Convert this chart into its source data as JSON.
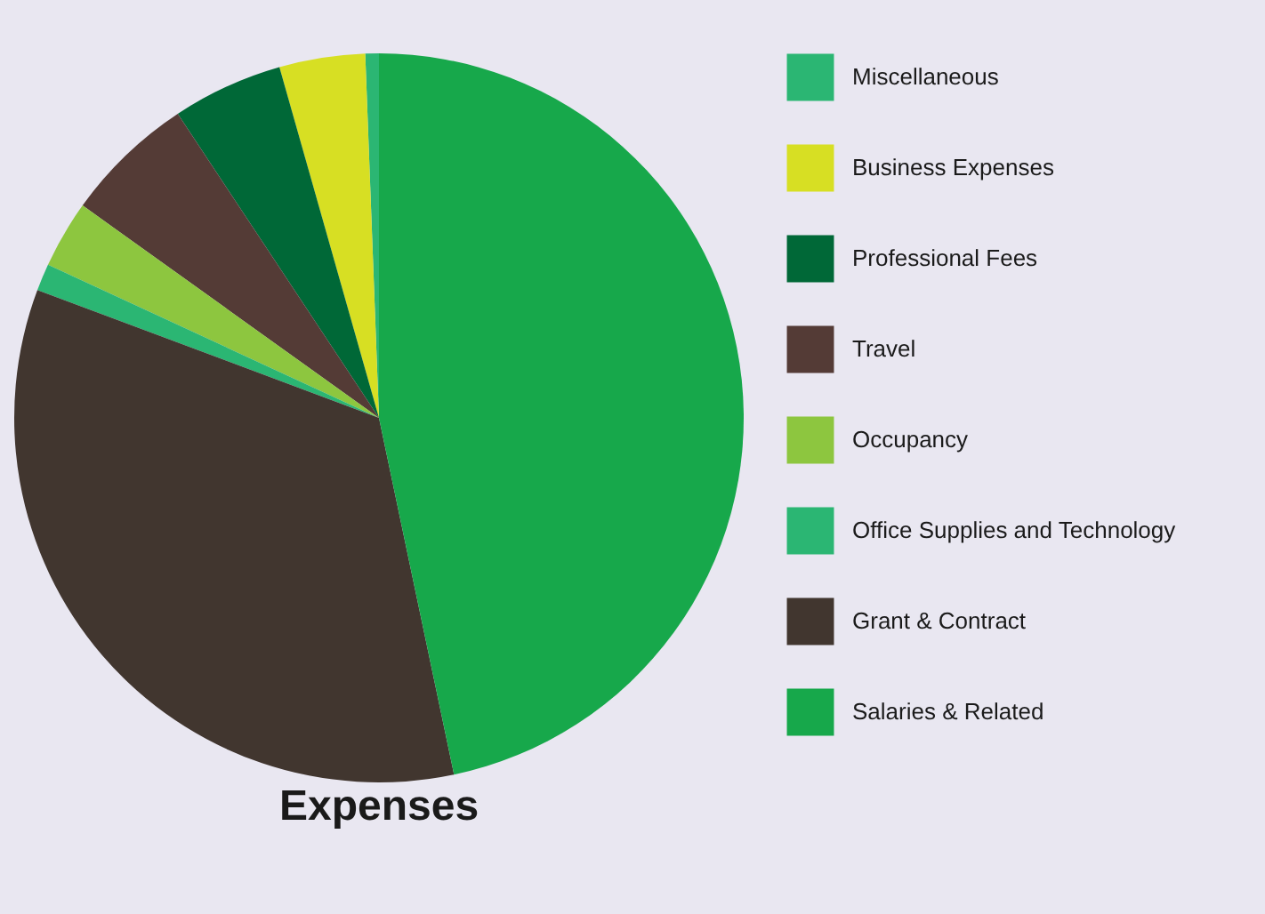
{
  "chart_data": {
    "type": "pie",
    "title": "Expenses",
    "categories": [
      "Miscellaneous",
      "Business Expenses",
      "Professional Fees",
      "Travel",
      "Occupancy",
      "Office Supplies and Technology",
      "Grant & Contract",
      "Salaries & Related"
    ],
    "values": [
      0.6,
      3.8,
      4.9,
      5.8,
      3,
      1.2,
      34,
      46.7
    ],
    "colors": [
      "#2bb673",
      "#d7df23",
      "#006837",
      "#543b36",
      "#8dc63f",
      "#2bb673",
      "#41362f",
      "#17a84b"
    ],
    "legend": "right"
  }
}
